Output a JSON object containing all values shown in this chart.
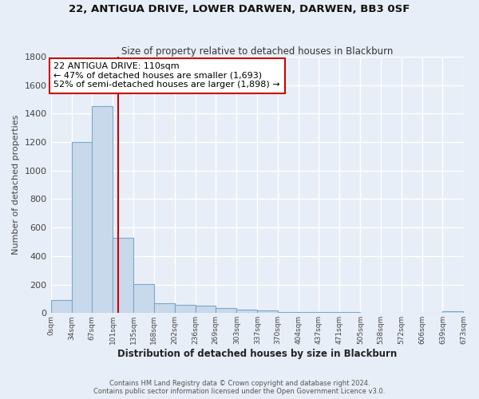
{
  "title1": "22, ANTIGUA DRIVE, LOWER DARWEN, DARWEN, BB3 0SF",
  "title2": "Size of property relative to detached houses in Blackburn",
  "xlabel": "Distribution of detached houses by size in Blackburn",
  "ylabel": "Number of detached properties",
  "footnote1": "Contains HM Land Registry data © Crown copyright and database right 2024.",
  "footnote2": "Contains public sector information licensed under the Open Government Licence v3.0.",
  "bar_color": "#c9d9ec",
  "bar_edge_color": "#7ba7c9",
  "background_color": "#e8eef7",
  "grid_color": "#ffffff",
  "property_line_x": 110,
  "property_line_color": "#cc0000",
  "annotation_text": "22 ANTIGUA DRIVE: 110sqm\n← 47% of detached houses are smaller (1,693)\n52% of semi-detached houses are larger (1,898) →",
  "annotation_box_color": "#ffffff",
  "annotation_border_color": "#cc0000",
  "bin_edges": [
    0,
    34,
    67,
    101,
    135,
    168,
    202,
    236,
    269,
    303,
    337,
    370,
    404,
    437,
    471,
    505,
    538,
    572,
    606,
    639,
    673
  ],
  "bin_counts": [
    90,
    1200,
    1455,
    530,
    205,
    70,
    55,
    50,
    35,
    25,
    20,
    10,
    10,
    5,
    5,
    0,
    0,
    0,
    0,
    15
  ],
  "ylim": [
    0,
    1800
  ],
  "xlim": [
    0,
    673
  ]
}
